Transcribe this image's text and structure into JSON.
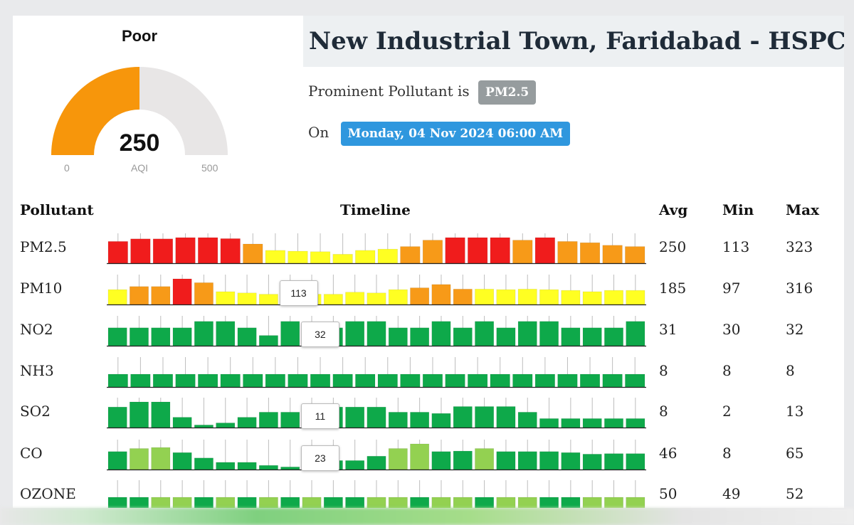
{
  "colors": {
    "red": "#f01c1c",
    "orange": "#f79a18",
    "yellow": "#ffff22",
    "green": "#0ea94a",
    "lightgreen": "#93d151",
    "gauge_track": "#e8e6e6",
    "gauge_fill": "#f7960b"
  },
  "gauge": {
    "status": "Poor",
    "value": "250",
    "value_num": 250,
    "min": "0",
    "max": "500",
    "min_num": 0,
    "max_num": 500,
    "label": "AQI"
  },
  "station": {
    "title": "New Industrial Town, Faridabad - HSPCB",
    "prominent_text": "Prominent Pollutant is",
    "prominent": "PM2.5",
    "on_text": "On",
    "date": "Monday, 04 Nov 2024 06:00 AM"
  },
  "table": {
    "headers": {
      "pollutant": "Pollutant",
      "timeline": "Timeline",
      "avg": "Avg",
      "min": "Min",
      "max": "Max"
    },
    "rows": [
      {
        "name": "PM2.5",
        "avg": "250",
        "min": "113",
        "max": "323",
        "bars": [
          85,
          95,
          95,
          100,
          100,
          96,
          75,
          50,
          47,
          45,
          35,
          50,
          55,
          65,
          90,
          100,
          100,
          100,
          90,
          100,
          85,
          80,
          70,
          65
        ],
        "colors": [
          "red",
          "red",
          "red",
          "red",
          "red",
          "red",
          "orange",
          "yellow",
          "yellow",
          "yellow",
          "yellow",
          "yellow",
          "yellow",
          "orange",
          "orange",
          "red",
          "red",
          "red",
          "orange",
          "red",
          "orange",
          "orange",
          "orange",
          "orange"
        ],
        "tooltip": null
      },
      {
        "name": "PM10",
        "avg": "185",
        "min": "97",
        "max": "316",
        "bars": [
          58,
          70,
          70,
          100,
          85,
          50,
          45,
          40,
          40,
          40,
          40,
          48,
          45,
          58,
          65,
          78,
          60,
          60,
          58,
          60,
          58,
          55,
          50,
          55,
          55
        ],
        "colors": [
          "yellow",
          "orange",
          "orange",
          "red",
          "orange",
          "yellow",
          "yellow",
          "yellow",
          "yellow",
          "yellow",
          "yellow",
          "yellow",
          "yellow",
          "yellow",
          "orange",
          "orange",
          "orange",
          "yellow",
          "yellow",
          "yellow",
          "yellow",
          "yellow",
          "yellow",
          "yellow",
          "yellow"
        ],
        "tooltip": {
          "text": "113",
          "bar": 8
        }
      },
      {
        "name": "NO2",
        "avg": "31",
        "min": "30",
        "max": "32",
        "bars": [
          70,
          70,
          70,
          70,
          95,
          95,
          70,
          40,
          95,
          70,
          70,
          95,
          95,
          70,
          70,
          95,
          70,
          95,
          70,
          95,
          95,
          70,
          70,
          70,
          95
        ],
        "colors": [
          "green",
          "green",
          "green",
          "green",
          "green",
          "green",
          "green",
          "green",
          "green",
          "green",
          "green",
          "green",
          "green",
          "green",
          "green",
          "green",
          "green",
          "green",
          "green",
          "green",
          "green",
          "green",
          "green",
          "green",
          "green"
        ],
        "tooltip": {
          "text": "32",
          "bar": 9
        }
      },
      {
        "name": "NH3",
        "avg": "8",
        "min": "8",
        "max": "8",
        "bars": [
          50,
          50,
          50,
          50,
          50,
          50,
          50,
          50,
          50,
          50,
          50,
          50,
          50,
          50,
          50,
          50,
          50,
          50,
          50,
          50,
          50,
          50,
          50,
          50
        ],
        "colors": [
          "green",
          "green",
          "green",
          "green",
          "green",
          "green",
          "green",
          "green",
          "green",
          "green",
          "green",
          "green",
          "green",
          "green",
          "green",
          "green",
          "green",
          "green",
          "green",
          "green",
          "green",
          "green",
          "green",
          "green"
        ],
        "tooltip": null
      },
      {
        "name": "SO2",
        "avg": "8",
        "min": "2",
        "max": "13",
        "bars": [
          80,
          100,
          100,
          40,
          10,
          18,
          40,
          60,
          60,
          60,
          80,
          80,
          80,
          60,
          60,
          55,
          82,
          82,
          82,
          60,
          35,
          35,
          35,
          35,
          35
        ],
        "colors": [
          "green",
          "green",
          "green",
          "green",
          "green",
          "green",
          "green",
          "green",
          "green",
          "green",
          "green",
          "green",
          "green",
          "green",
          "green",
          "green",
          "green",
          "green",
          "green",
          "green",
          "green",
          "green",
          "green",
          "green",
          "green"
        ],
        "tooltip": {
          "text": "11",
          "bar": 9
        }
      },
      {
        "name": "CO",
        "avg": "46",
        "min": "8",
        "max": "65",
        "bars": [
          70,
          82,
          86,
          66,
          45,
          28,
          28,
          16,
          10,
          20,
          35,
          35,
          52,
          82,
          100,
          70,
          72,
          82,
          70,
          70,
          70,
          66,
          60,
          62,
          62
        ],
        "colors": [
          "green",
          "lightgreen",
          "lightgreen",
          "green",
          "green",
          "green",
          "green",
          "green",
          "green",
          "green",
          "green",
          "green",
          "green",
          "lightgreen",
          "lightgreen",
          "green",
          "green",
          "lightgreen",
          "green",
          "green",
          "green",
          "green",
          "green",
          "green",
          "green"
        ],
        "tooltip": {
          "text": "23",
          "bar": 9
        }
      },
      {
        "name": "OZONE",
        "avg": "50",
        "min": "49",
        "max": "52",
        "bars": [
          50,
          50,
          50,
          50,
          50,
          50,
          50,
          50,
          50,
          50,
          50,
          50,
          50,
          50,
          50,
          50,
          50,
          50,
          50,
          50,
          50,
          50,
          50,
          50,
          50
        ],
        "colors": [
          "green",
          "green",
          "lightgreen",
          "lightgreen",
          "green",
          "lightgreen",
          "green",
          "lightgreen",
          "green",
          "lightgreen",
          "green",
          "green",
          "lightgreen",
          "lightgreen",
          "green",
          "lightgreen",
          "lightgreen",
          "green",
          "lightgreen",
          "lightgreen",
          "green",
          "green",
          "lightgreen",
          "lightgreen",
          "lightgreen"
        ],
        "tooltip": null
      }
    ]
  }
}
